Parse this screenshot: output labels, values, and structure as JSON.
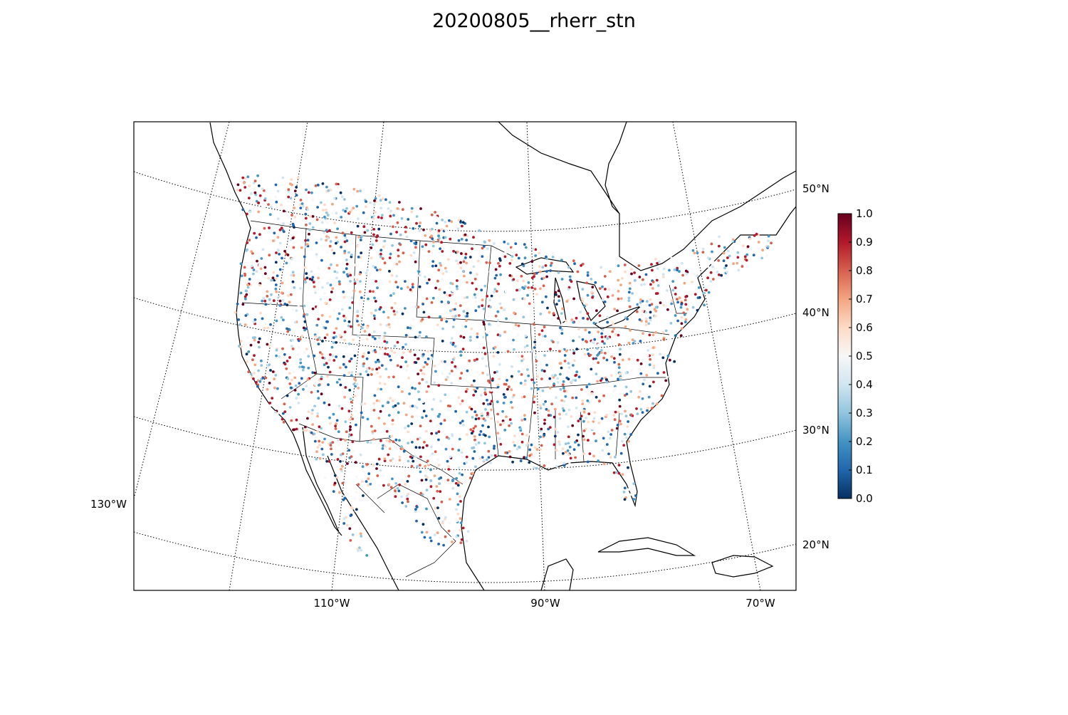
{
  "title": "20200805__rherr_stn",
  "map": {
    "lat_labels": [
      {
        "key": "lat50",
        "text": "50°N"
      },
      {
        "key": "lat40",
        "text": "40°N"
      },
      {
        "key": "lat30",
        "text": "30°N"
      },
      {
        "key": "lat20",
        "text": "20°N"
      }
    ],
    "lon_labels": [
      {
        "key": "lon130",
        "text": "130°W"
      },
      {
        "key": "lon110",
        "text": "110°W"
      },
      {
        "key": "lon90",
        "text": "90°W"
      },
      {
        "key": "lon70",
        "text": "70°W"
      }
    ],
    "grid_style": "dotted",
    "marker_color_range": [
      0.0,
      1.0
    ]
  },
  "colorbar": {
    "ticks": [
      "1.0",
      "0.9",
      "0.8",
      "0.7",
      "0.6",
      "0.5",
      "0.4",
      "0.3",
      "0.2",
      "0.1",
      "0.0"
    ],
    "colors": [
      "#67001f",
      "#b2182b",
      "#d6604d",
      "#f4a582",
      "#fddbc7",
      "#f7f7f7",
      "#d1e5f0",
      "#92c5de",
      "#4393c3",
      "#2166ac",
      "#053061"
    ],
    "min": 0.0,
    "max": 1.0,
    "colormap": "RdBu_r"
  }
}
